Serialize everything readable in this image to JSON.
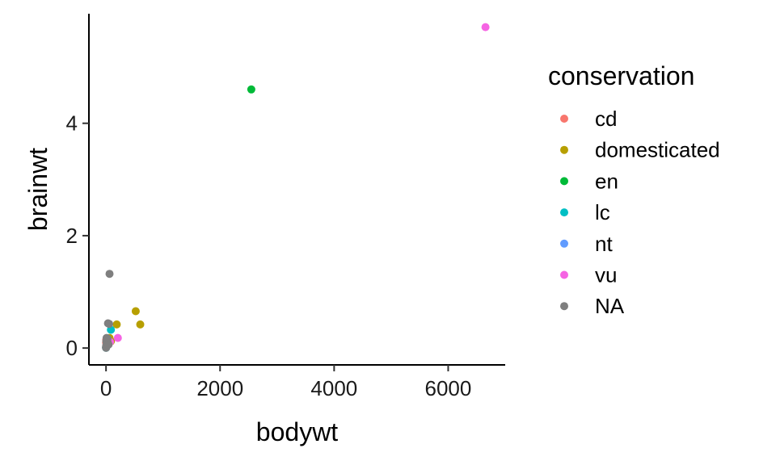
{
  "chart_data": {
    "type": "scatter",
    "xlabel": "bodywt",
    "ylabel": "brainwt",
    "legend_title": "conservation",
    "legend_position": "right",
    "grid": false,
    "xlim": [
      -300,
      7000
    ],
    "ylim": [
      -0.3,
      5.95
    ],
    "x_ticks": [
      0,
      2000,
      4000,
      6000
    ],
    "x_tick_labels": [
      "0",
      "2000",
      "4000",
      "6000"
    ],
    "y_ticks": [
      0,
      2,
      4
    ],
    "y_tick_labels": [
      "0",
      "2",
      "4"
    ],
    "series": [
      {
        "name": "cd",
        "color": "#F8766D",
        "points": [
          [
            2.0,
            0.1
          ],
          [
            3.0,
            0.15
          ]
        ]
      },
      {
        "name": "domesticated",
        "color": "#B79F00",
        "points": [
          [
            187,
            0.42
          ],
          [
            521,
            0.655
          ],
          [
            600,
            0.42
          ],
          [
            85,
            0.12
          ],
          [
            62,
            0.18
          ],
          [
            2.5,
            0.01
          ]
        ]
      },
      {
        "name": "en",
        "color": "#00BA38",
        "points": [
          [
            2547,
            4.603
          ],
          [
            20,
            0.12
          ]
        ]
      },
      {
        "name": "lc",
        "color": "#00BFC4",
        "points": [
          [
            86,
            0.325
          ],
          [
            55,
            0.12
          ],
          [
            10,
            0.05
          ],
          [
            3,
            0.02
          ],
          [
            0.5,
            0.005
          ]
        ]
      },
      {
        "name": "nt",
        "color": "#619CFF",
        "points": [
          [
            1.5,
            0.01
          ],
          [
            25,
            0.09
          ]
        ]
      },
      {
        "name": "vu",
        "color": "#F564E3",
        "points": [
          [
            6654,
            5.712
          ],
          [
            207,
            0.18
          ],
          [
            70,
            0.11
          ]
        ]
      },
      {
        "name": "NA",
        "color": "#7F7F7F",
        "points": [
          [
            62,
            1.32
          ],
          [
            35,
            0.44
          ],
          [
            55,
            0.43
          ],
          [
            10,
            0.18
          ],
          [
            25,
            0.17
          ],
          [
            5,
            0.12
          ],
          [
            15,
            0.08
          ],
          [
            3,
            0.04
          ],
          [
            1,
            0.02
          ],
          [
            0.1,
            0.003
          ],
          [
            30,
            0.1
          ],
          [
            45,
            0.06
          ]
        ]
      }
    ]
  }
}
